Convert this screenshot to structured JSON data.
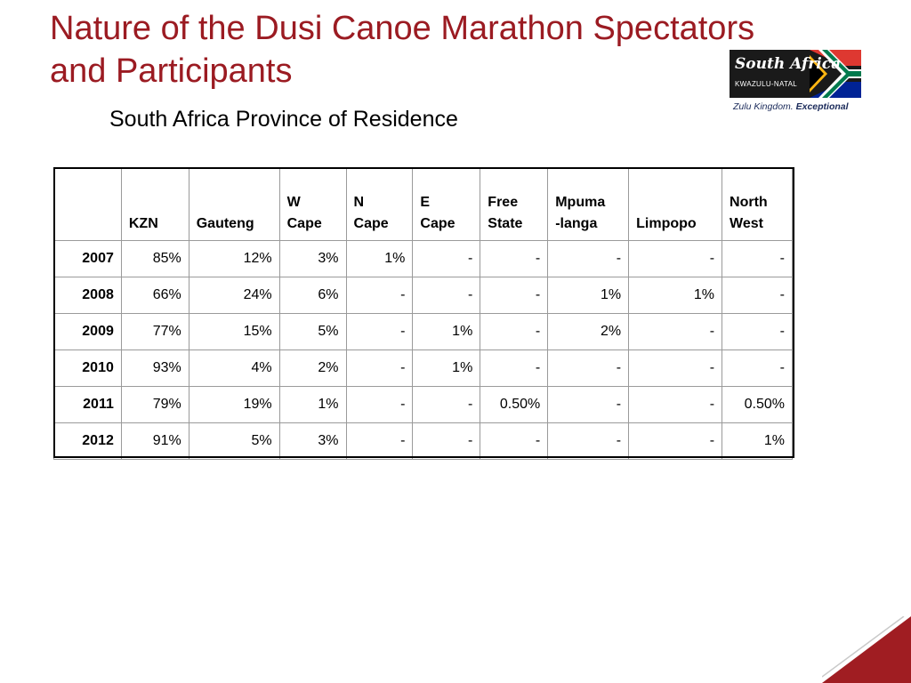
{
  "slide": {
    "title": "Nature of the Dusi Canoe Marathon Spectators and Participants",
    "subtitle": "South Africa Province of Residence"
  },
  "logo": {
    "name": "South Africa",
    "region": "KWAZULU-NATAL",
    "tagline_lead": "Zulu Kingdom.",
    "tagline_bold": "Exceptional"
  },
  "colors": {
    "title": "#9b1b22",
    "corner_accent": "#a01d22",
    "flag_green": "#007a4d",
    "flag_gold": "#ffb612",
    "flag_red": "#de3831",
    "flag_blue": "#002395"
  },
  "table": {
    "columns": [
      "",
      "KZN",
      "Gauteng",
      "W\nCape",
      "N\nCape",
      "E\nCape",
      "Free\nState",
      "Mpuma\n-langa",
      "Limpopo",
      "North\nWest"
    ],
    "rows": [
      [
        "2007",
        "85%",
        "12%",
        "3%",
        "1%",
        "-",
        "-",
        "-",
        "-",
        "-"
      ],
      [
        "2008",
        "66%",
        "24%",
        "6%",
        "-",
        "-",
        "-",
        "1%",
        "1%",
        "-"
      ],
      [
        "2009",
        "77%",
        "15%",
        "5%",
        "-",
        "1%",
        "-",
        "2%",
        "-",
        "-"
      ],
      [
        "2010",
        "93%",
        "4%",
        "2%",
        "-",
        "1%",
        "-",
        "-",
        "-",
        "-"
      ],
      [
        "2011",
        "79%",
        "19%",
        "1%",
        "-",
        "-",
        "0.50%",
        "-",
        "-",
        "0.50%"
      ],
      [
        "2012",
        "91%",
        "5%",
        "3%",
        "-",
        "-",
        "-",
        "-",
        "-",
        "1%"
      ]
    ]
  }
}
